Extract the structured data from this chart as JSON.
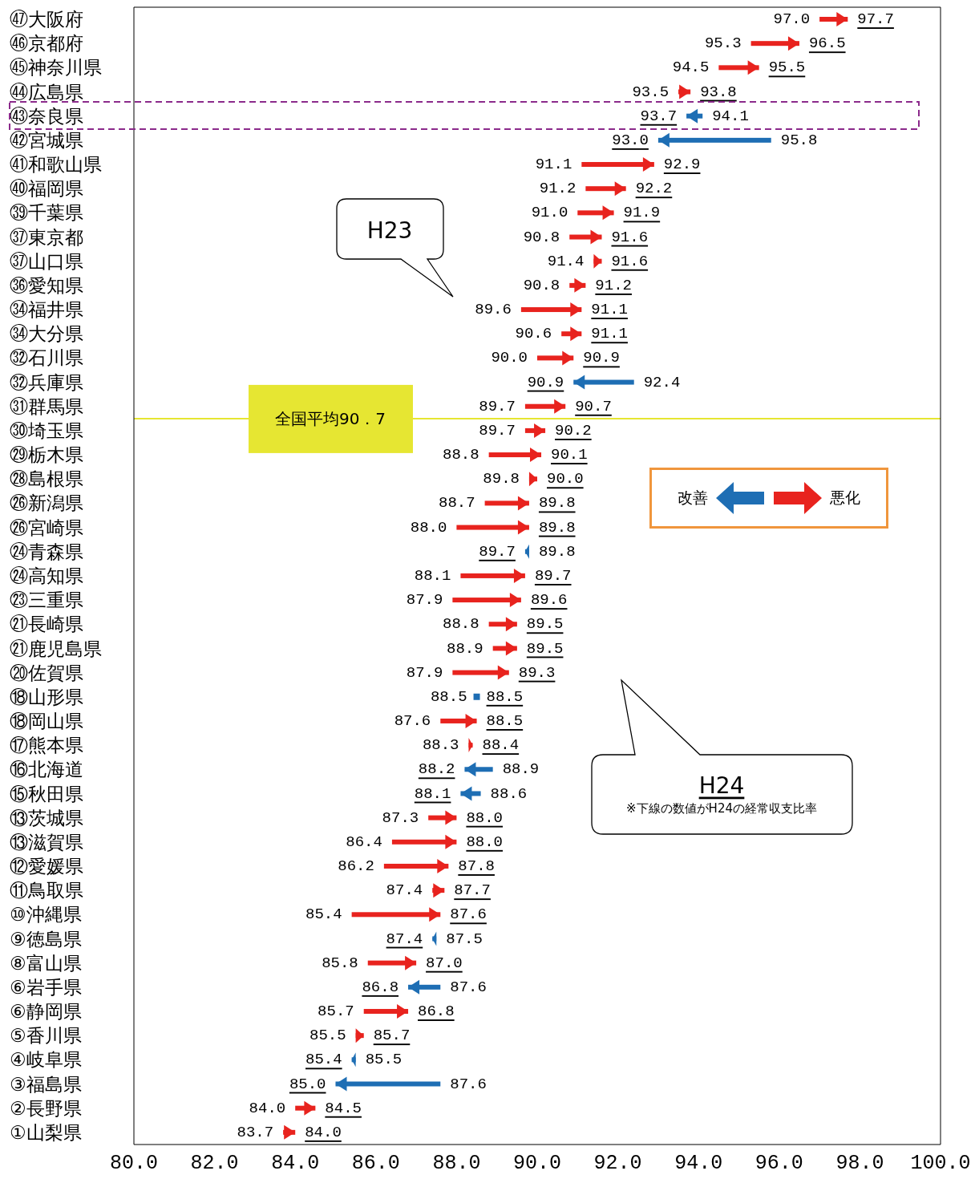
{
  "chart_data": {
    "type": "bar",
    "orientation": "horizontal",
    "categories": [
      "㊼大阪府",
      "㊻京都府",
      "㊺神奈川県",
      "㊹広島県",
      "㊸奈良県",
      "㊷宮城県",
      "㊶和歌山県",
      "㊵福岡県",
      "㊴千葉県",
      "㊲東京都",
      "㊲山口県",
      "㊱愛知県",
      "㉞福井県",
      "㉞大分県",
      "㉜石川県",
      "㉜兵庫県",
      "㉛群馬県",
      "㉚埼玉県",
      "㉙栃木県",
      "㉘島根県",
      "㉖新潟県",
      "㉖宮崎県",
      "㉔青森県",
      "㉔高知県",
      "㉓三重県",
      "㉑長崎県",
      "㉑鹿児島県",
      "⑳佐賀県",
      "⑱山形県",
      "⑱岡山県",
      "⑰熊本県",
      "⑯北海道",
      "⑮秋田県",
      "⑬茨城県",
      "⑬滋賀県",
      "⑫愛媛県",
      "⑪鳥取県",
      "⑩沖縄県",
      "⑨徳島県",
      "⑧富山県",
      "⑥岩手県",
      "⑥静岡県",
      "⑤香川県",
      "④岐阜県",
      "③福島県",
      "②長野県",
      "①山梨県"
    ],
    "series": [
      {
        "name": "改善",
        "color": "#1e6eb4",
        "values": [
          null,
          null,
          null,
          null,
          -0.4,
          -2.8,
          null,
          null,
          null,
          null,
          null,
          null,
          null,
          null,
          null,
          -1.5,
          null,
          null,
          null,
          null,
          null,
          null,
          -0.1,
          null,
          null,
          null,
          null,
          null,
          0,
          null,
          null,
          -0.7,
          -0.5,
          null,
          null,
          null,
          null,
          null,
          -0.1,
          null,
          -0.8,
          null,
          null,
          -0.1,
          -2.6,
          null,
          null
        ],
        "base": [
          null,
          null,
          null,
          null,
          94.1,
          95.8,
          null,
          null,
          null,
          null,
          null,
          null,
          null,
          null,
          null,
          92.4,
          null,
          null,
          null,
          null,
          null,
          null,
          89.8,
          null,
          null,
          null,
          null,
          null,
          88.5,
          null,
          null,
          88.9,
          88.6,
          null,
          null,
          null,
          null,
          null,
          87.5,
          null,
          87.6,
          null,
          null,
          85.5,
          87.6,
          null,
          null
        ]
      },
      {
        "name": "悪化",
        "color": "#e8231e",
        "values": [
          0.7,
          1.2,
          1.0,
          0.3,
          null,
          null,
          1.8,
          1.0,
          0.9,
          0.8,
          0.2,
          0.4,
          1.5,
          0.5,
          0.9,
          null,
          1.0,
          0.5,
          1.3,
          0.2,
          1.1,
          1.8,
          null,
          1.6,
          1.7,
          0.7,
          0.6,
          1.4,
          null,
          0.9,
          0.1,
          null,
          null,
          0.7,
          1.6,
          1.6,
          0.3,
          2.2,
          null,
          1.2,
          null,
          1.1,
          0.2,
          null,
          null,
          0.5,
          0.3
        ],
        "base": [
          97.0,
          95.3,
          94.5,
          93.5,
          null,
          null,
          91.1,
          91.2,
          91.0,
          90.8,
          91.4,
          90.8,
          89.6,
          90.6,
          90.0,
          null,
          89.7,
          89.7,
          88.8,
          89.8,
          88.7,
          88.0,
          null,
          88.1,
          87.9,
          88.8,
          88.9,
          87.9,
          null,
          87.6,
          88.3,
          null,
          null,
          87.3,
          86.4,
          86.2,
          87.4,
          85.4,
          null,
          85.8,
          null,
          85.7,
          85.5,
          null,
          null,
          84.0,
          83.7
        ]
      }
    ],
    "xlim": [
      80,
      100
    ],
    "xticks": [
      {
        "value": 80,
        "label": "80.0"
      },
      {
        "value": 82,
        "label": "82.0"
      },
      {
        "value": 84,
        "label": "84.0"
      },
      {
        "value": 86,
        "label": "86.0"
      },
      {
        "value": 88,
        "label": "88.0"
      },
      {
        "value": 90,
        "label": "90.0"
      },
      {
        "value": 92,
        "label": "92.0"
      },
      {
        "value": 94,
        "label": "94.0"
      },
      {
        "value": 96,
        "label": "96.0"
      },
      {
        "value": 98,
        "label": "98.0"
      },
      {
        "value": 100,
        "label": "100.0"
      }
    ],
    "legend": "right",
    "ref_lines": [
      {
        "axis": "y",
        "value": "㉛群馬県",
        "label": "全国平均90．7",
        "color": "#e6e632"
      }
    ],
    "annotations": [
      "H23",
      "H24",
      "※下線の数値がH24の経常収支比率",
      {
        "text": "97.0",
        "x": 97.0,
        "y": "㊼大阪府"
      },
      {
        "text": "97.7",
        "x": 97.7,
        "y": "㊼大阪府"
      },
      {
        "text": "95.3",
        "x": 95.3,
        "y": "㊻京都府"
      },
      {
        "text": "96.5",
        "x": 96.5,
        "y": "㊻京都府"
      },
      {
        "text": "94.5",
        "x": 94.5,
        "y": "㊺神奈川県"
      },
      {
        "text": "95.5",
        "x": 95.5,
        "y": "㊺神奈川県"
      },
      {
        "text": "93.5",
        "x": 93.5,
        "y": "㊹広島県"
      },
      {
        "text": "93.8",
        "x": 93.8,
        "y": "㊹広島県"
      },
      {
        "text": "94.1",
        "x": 94.1,
        "y": "㊸奈良県"
      },
      {
        "text": "93.7",
        "x": 93.7,
        "y": "㊸奈良県"
      },
      {
        "text": "95.8",
        "x": 95.8,
        "y": "㊷宮城県"
      },
      {
        "text": "93.0",
        "x": 93.0,
        "y": "㊷宮城県"
      },
      {
        "text": "91.1",
        "x": 91.1,
        "y": "㊶和歌山県"
      },
      {
        "text": "92.9",
        "x": 92.9,
        "y": "㊶和歌山県"
      },
      {
        "text": "91.2",
        "x": 91.2,
        "y": "㊵福岡県"
      },
      {
        "text": "92.2",
        "x": 92.2,
        "y": "㊵福岡県"
      },
      {
        "text": "91.0",
        "x": 91.0,
        "y": "㊴千葉県"
      },
      {
        "text": "91.9",
        "x": 91.9,
        "y": "㊴千葉県"
      },
      {
        "text": "90.8",
        "x": 90.8,
        "y": "㊲東京都"
      },
      {
        "text": "91.6",
        "x": 91.6,
        "y": "㊲東京都"
      },
      {
        "text": "91.4",
        "x": 91.4,
        "y": "㊲山口県"
      },
      {
        "text": "91.6",
        "x": 91.6,
        "y": "㊲山口県"
      },
      {
        "text": "90.8",
        "x": 90.8,
        "y": "㊱愛知県"
      },
      {
        "text": "91.2",
        "x": 91.2,
        "y": "㊱愛知県"
      },
      {
        "text": "89.6",
        "x": 89.6,
        "y": "㉞福井県"
      },
      {
        "text": "91.1",
        "x": 91.1,
        "y": "㉞福井県"
      },
      {
        "text": "90.6",
        "x": 90.6,
        "y": "㉞大分県"
      },
      {
        "text": "91.1",
        "x": 91.1,
        "y": "㉞大分県"
      },
      {
        "text": "90.0",
        "x": 90.0,
        "y": "㉜石川県"
      },
      {
        "text": "90.9",
        "x": 90.9,
        "y": "㉜石川県"
      },
      {
        "text": "92.4",
        "x": 92.4,
        "y": "㉜兵庫県"
      },
      {
        "text": "90.9",
        "x": 90.9,
        "y": "㉜兵庫県"
      },
      {
        "text": "89.7",
        "x": 89.7,
        "y": "㉛群馬県"
      },
      {
        "text": "90.7",
        "x": 90.7,
        "y": "㉛群馬県"
      },
      {
        "text": "89.7",
        "x": 89.7,
        "y": "㉚埼玉県"
      },
      {
        "text": "90.2",
        "x": 90.2,
        "y": "㉚埼玉県"
      },
      {
        "text": "88.8",
        "x": 88.8,
        "y": "㉙栃木県"
      },
      {
        "text": "90.1",
        "x": 90.1,
        "y": "㉙栃木県"
      },
      {
        "text": "89.8",
        "x": 89.8,
        "y": "㉘島根県"
      },
      {
        "text": "90.0",
        "x": 90.0,
        "y": "㉘島根県"
      },
      {
        "text": "88.7",
        "x": 88.7,
        "y": "㉖新潟県"
      },
      {
        "text": "89.8",
        "x": 89.8,
        "y": "㉖新潟県"
      },
      {
        "text": "88.0",
        "x": 88.0,
        "y": "㉖宮崎県"
      },
      {
        "text": "89.8",
        "x": 89.8,
        "y": "㉖宮崎県"
      },
      {
        "text": "89.8",
        "x": 89.8,
        "y": "㉔青森県"
      },
      {
        "text": "89.7",
        "x": 89.7,
        "y": "㉔青森県"
      },
      {
        "text": "88.1",
        "x": 88.1,
        "y": "㉔高知県"
      },
      {
        "text": "89.7",
        "x": 89.7,
        "y": "㉔高知県"
      },
      {
        "text": "87.9",
        "x": 87.9,
        "y": "㉓三重県"
      },
      {
        "text": "89.6",
        "x": 89.6,
        "y": "㉓三重県"
      },
      {
        "text": "88.8",
        "x": 88.8,
        "y": "㉑長崎県"
      },
      {
        "text": "89.5",
        "x": 89.5,
        "y": "㉑長崎県"
      },
      {
        "text": "88.9",
        "x": 88.9,
        "y": "㉑鹿児島県"
      },
      {
        "text": "89.5",
        "x": 89.5,
        "y": "㉑鹿児島県"
      },
      {
        "text": "87.9",
        "x": 87.9,
        "y": "⑳佐賀県"
      },
      {
        "text": "89.3",
        "x": 89.3,
        "y": "⑳佐賀県"
      },
      {
        "text": "88.5",
        "x": 88.5,
        "y": "⑱山形県"
      },
      {
        "text": "88.5",
        "x": 88.5,
        "y": "⑱山形県"
      },
      {
        "text": "87.6",
        "x": 87.6,
        "y": "⑱岡山県"
      },
      {
        "text": "88.5",
        "x": 88.5,
        "y": "⑱岡山県"
      },
      {
        "text": "88.3",
        "x": 88.3,
        "y": "⑰熊本県"
      },
      {
        "text": "88.4",
        "x": 88.4,
        "y": "⑰熊本県"
      },
      {
        "text": "88.9",
        "x": 88.9,
        "y": "⑯北海道"
      },
      {
        "text": "88.2",
        "x": 88.2,
        "y": "⑯北海道"
      },
      {
        "text": "88.6",
        "x": 88.6,
        "y": "⑮秋田県"
      },
      {
        "text": "88.1",
        "x": 88.1,
        "y": "⑮秋田県"
      },
      {
        "text": "87.3",
        "x": 87.3,
        "y": "⑬茨城県"
      },
      {
        "text": "88.0",
        "x": 88.0,
        "y": "⑬茨城県"
      },
      {
        "text": "86.4",
        "x": 86.4,
        "y": "⑬滋賀県"
      },
      {
        "text": "88.0",
        "x": 88.0,
        "y": "⑬滋賀県"
      },
      {
        "text": "86.2",
        "x": 86.2,
        "y": "⑫愛媛県"
      },
      {
        "text": "87.8",
        "x": 87.8,
        "y": "⑫愛媛県"
      },
      {
        "text": "87.4",
        "x": 87.4,
        "y": "⑪鳥取県"
      },
      {
        "text": "87.7",
        "x": 87.7,
        "y": "⑪鳥取県"
      },
      {
        "text": "85.4",
        "x": 85.4,
        "y": "⑩沖縄県"
      },
      {
        "text": "87.6",
        "x": 87.6,
        "y": "⑩沖縄県"
      },
      {
        "text": "87.5",
        "x": 87.5,
        "y": "⑨徳島県"
      },
      {
        "text": "87.4",
        "x": 87.4,
        "y": "⑨徳島県"
      },
      {
        "text": "85.8",
        "x": 85.8,
        "y": "⑧富山県"
      },
      {
        "text": "87.0",
        "x": 87.0,
        "y": "⑧富山県"
      },
      {
        "text": "87.6",
        "x": 87.6,
        "y": "⑥岩手県"
      },
      {
        "text": "86.8",
        "x": 86.8,
        "y": "⑥岩手県"
      },
      {
        "text": "85.7",
        "x": 85.7,
        "y": "⑥静岡県"
      },
      {
        "text": "86.8",
        "x": 86.8,
        "y": "⑥静岡県"
      },
      {
        "text": "85.5",
        "x": 85.5,
        "y": "⑤香川県"
      },
      {
        "text": "85.7",
        "x": 85.7,
        "y": "⑤香川県"
      },
      {
        "text": "85.5",
        "x": 85.5,
        "y": "④岐阜県"
      },
      {
        "text": "85.4",
        "x": 85.4,
        "y": "④岐阜県"
      },
      {
        "text": "87.6",
        "x": 87.6,
        "y": "③福島県"
      },
      {
        "text": "85.0",
        "x": 85.0,
        "y": "③福島県"
      },
      {
        "text": "84.0",
        "x": 84.0,
        "y": "②長野県"
      },
      {
        "text": "84.5",
        "x": 84.5,
        "y": "②長野県"
      },
      {
        "text": "83.7",
        "x": 83.7,
        "y": "①山梨県"
      },
      {
        "text": "84.0",
        "x": 84.0,
        "y": "①山梨県"
      }
    ]
  }
}
